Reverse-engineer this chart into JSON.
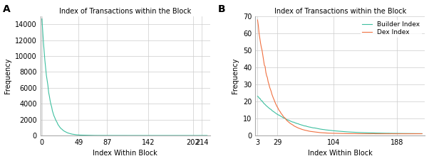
{
  "title": "Index of Transactions within the Block",
  "xlabel": "Index Within Block",
  "ylabel": "Frequency",
  "panel_A_label": "A",
  "panel_B_label": "B",
  "panel_A_xticks": [
    0,
    49,
    87,
    142,
    202,
    214
  ],
  "panel_A_ylim": [
    0,
    15000
  ],
  "panel_A_yticks": [
    0,
    2000,
    4000,
    6000,
    8000,
    10000,
    12000,
    14000
  ],
  "panel_A_xlim": [
    -2,
    225
  ],
  "panel_A_color": "#3dbf9f",
  "panel_B_xticks": [
    3,
    29,
    104,
    188
  ],
  "panel_B_ylim": [
    0,
    70
  ],
  "panel_B_yticks": [
    0,
    10,
    20,
    30,
    40,
    50,
    60,
    70
  ],
  "panel_B_xlim": [
    0,
    225
  ],
  "builder_color": "#3dbf9f",
  "dex_color": "#f07040",
  "legend_builder": "Builder Index",
  "legend_dex": "Dex Index",
  "background_color": "#ffffff",
  "grid_color": "#cccccc",
  "font_size": 7
}
